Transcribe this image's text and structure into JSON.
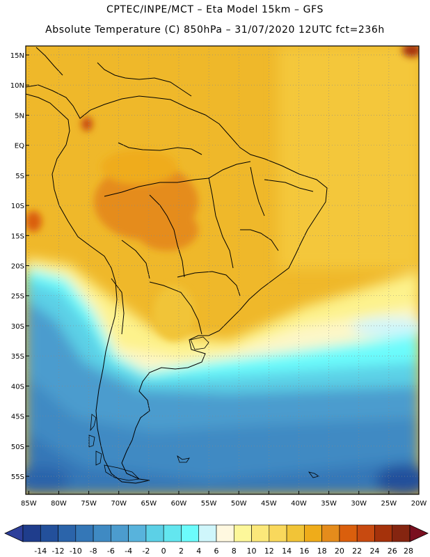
{
  "title_line1": "CPTEC/INPE/MCT –  Eta Model 15km – GFS",
  "title_line2": "Absolute Temperature (C) 850hPa – 31/07/2020 12UTC fct=236h",
  "lat_labels": [
    "15N",
    "10N",
    "5N",
    "EQ",
    "5S",
    "10S",
    "15S",
    "20S",
    "25S",
    "30S",
    "35S",
    "40S",
    "45S",
    "50S",
    "55S"
  ],
  "lat_values": [
    15,
    10,
    5,
    0,
    -5,
    -10,
    -15,
    -20,
    -25,
    -30,
    -35,
    -40,
    -45,
    -50,
    -55
  ],
  "lon_labels": [
    "85W",
    "80W",
    "75W",
    "70W",
    "65W",
    "60W",
    "55W",
    "50W",
    "45W",
    "40W",
    "35W",
    "30W",
    "25W",
    "20W"
  ],
  "lon_values": [
    -85,
    -80,
    -75,
    -70,
    -65,
    -60,
    -55,
    -50,
    -45,
    -40,
    -35,
    -30,
    -25,
    -20
  ],
  "map_extent": {
    "lon_min": -85.5,
    "lon_max": -20,
    "lat_min": -58,
    "lat_max": 16.5
  },
  "colorbar": {
    "labels": [
      "-14",
      "-12",
      "-10",
      "-8",
      "-6",
      "-4",
      "-2",
      "0",
      "2",
      "4",
      "6",
      "8",
      "10",
      "12",
      "14",
      "16",
      "18",
      "20",
      "22",
      "24",
      "26",
      "28"
    ],
    "colors": [
      "#1f3d8c",
      "#23509b",
      "#2b64aa",
      "#3477b7",
      "#3f8ac3",
      "#4c9cce",
      "#58b3dc",
      "#5cd0e6",
      "#63e6ef",
      "#6cfcfc",
      "#cff6fb",
      "#fff8e0",
      "#fdf79a",
      "#fbe87a",
      "#f9d85c",
      "#f1c437",
      "#efac1a",
      "#e58c1c",
      "#da5f0d",
      "#c84a10",
      "#a5320b",
      "#852510"
    ],
    "low_color": "#2d3f9a",
    "high_color": "#7a0f1f"
  }
}
